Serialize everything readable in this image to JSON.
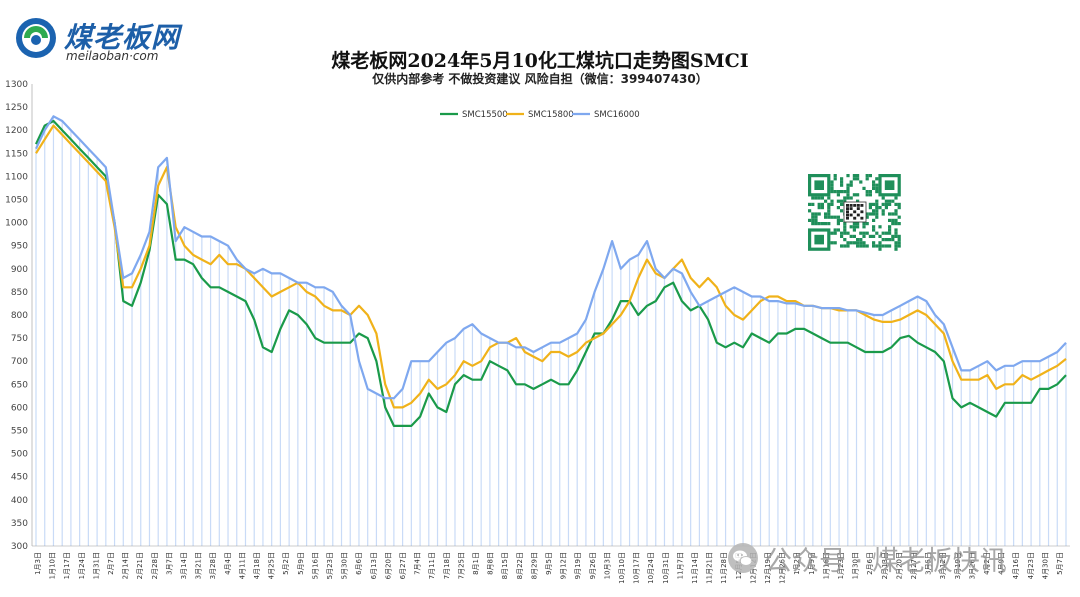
{
  "logo": {
    "name": "煤老板网",
    "sub": "meilaoban·com",
    "mark_icon": "coal-boss-logo-icon"
  },
  "header": {
    "title": "煤老板网2024年5月10化工煤坑口走势图SMCI",
    "subtitle": "仅供内部参考 不做投资建议 风险自担（微信：399407430）"
  },
  "qr": {
    "icon": "qr-code-icon"
  },
  "watermark": {
    "icon": "wechat-icon",
    "text": "公众号 · 煤老板快讯"
  },
  "chart_data": {
    "type": "line",
    "title": "煤老板网2024年5月10化工煤坑口走势图SMCI",
    "ylim": [
      300,
      1300
    ],
    "yticks": [
      300,
      350,
      400,
      450,
      500,
      550,
      600,
      650,
      700,
      750,
      800,
      850,
      900,
      950,
      1000,
      1050,
      1100,
      1150,
      1200,
      1250,
      1300
    ],
    "grid": false,
    "legend": "top-center",
    "xtick_labels": [
      "1月3日",
      "1月10日",
      "1月17日",
      "1月24日",
      "1月31日",
      "2月7日",
      "2月14日",
      "2月21日",
      "2月28日",
      "3月7日",
      "3月14日",
      "3月21日",
      "3月28日",
      "4月4日",
      "4月11日",
      "4月18日",
      "4月25日",
      "5月2日",
      "5月9日",
      "5月16日",
      "5月23日",
      "5月30日",
      "6月6日",
      "6月13日",
      "6月20日",
      "6月27日",
      "7月4日",
      "7月11日",
      "7月18日",
      "7月25日",
      "8月1日",
      "8月8日",
      "8月15日",
      "8月22日",
      "8月29日",
      "9月5日",
      "9月12日",
      "9月19日",
      "9月26日",
      "10月3日",
      "10月10日",
      "10月17日",
      "10月24日",
      "10月31日",
      "11月7日",
      "11月14日",
      "11月21日",
      "11月28日",
      "12月5日",
      "12月12日",
      "12月19日",
      "12月26日",
      "1月2日",
      "1月9日",
      "1月16日",
      "1月23日",
      "1月30日",
      "2月6日",
      "2月13日",
      "2月20日",
      "2月27日",
      "3月5日",
      "3月12日",
      "3月19日",
      "3月26日",
      "4月2日",
      "4月9日",
      "4月16日",
      "4月23日",
      "4月30日",
      "5月7日"
    ],
    "series": [
      {
        "name": "SMC15500",
        "color": "#1a9a4a",
        "values": [
          1170,
          1210,
          1220,
          1200,
          1180,
          1160,
          1140,
          1120,
          1100,
          1000,
          830,
          820,
          870,
          940,
          1060,
          1040,
          920,
          920,
          910,
          880,
          860,
          860,
          850,
          840,
          830,
          790,
          730,
          720,
          770,
          810,
          800,
          780,
          750,
          740,
          740,
          740,
          740,
          760,
          750,
          700,
          600,
          560,
          560,
          560,
          580,
          630,
          600,
          590,
          650,
          670,
          660,
          660,
          700,
          690,
          680,
          650,
          650,
          640,
          650,
          660,
          650,
          650,
          680,
          720,
          760,
          760,
          790,
          830,
          830,
          800,
          820,
          830,
          860,
          870,
          830,
          810,
          820,
          790,
          740,
          730,
          740,
          730,
          760,
          750,
          740,
          760,
          760,
          770,
          770,
          760,
          750,
          740,
          740,
          740,
          730,
          720,
          720,
          720,
          730,
          750,
          755,
          740,
          730,
          720,
          700,
          620,
          600,
          610,
          600,
          590,
          580,
          610,
          610,
          610,
          610,
          640,
          640,
          650,
          670
        ]
      },
      {
        "name": "SMC15800",
        "color": "#f0b21a",
        "values": [
          1150,
          1180,
          1210,
          1190,
          1170,
          1150,
          1130,
          1110,
          1090,
          990,
          860,
          860,
          900,
          950,
          1080,
          1120,
          990,
          950,
          930,
          920,
          910,
          930,
          910,
          910,
          900,
          880,
          860,
          840,
          850,
          860,
          870,
          850,
          840,
          820,
          810,
          810,
          800,
          820,
          800,
          760,
          650,
          600,
          600,
          610,
          630,
          660,
          640,
          650,
          670,
          700,
          690,
          700,
          730,
          740,
          740,
          750,
          720,
          710,
          700,
          720,
          720,
          710,
          720,
          740,
          750,
          760,
          780,
          800,
          830,
          880,
          920,
          890,
          880,
          900,
          920,
          880,
          860,
          880,
          860,
          820,
          800,
          790,
          810,
          830,
          840,
          840,
          830,
          830,
          820,
          820,
          815,
          815,
          810,
          810,
          810,
          800,
          790,
          785,
          785,
          790,
          800,
          810,
          800,
          780,
          760,
          700,
          660,
          660,
          660,
          670,
          640,
          650,
          650,
          670,
          660,
          670,
          680,
          690,
          705
        ]
      },
      {
        "name": "SMC16000",
        "color": "#7fa8ef",
        "values": [
          1160,
          1200,
          1230,
          1220,
          1200,
          1180,
          1160,
          1140,
          1120,
          1000,
          880,
          890,
          930,
          980,
          1120,
          1140,
          960,
          990,
          980,
          970,
          970,
          960,
          950,
          920,
          900,
          890,
          900,
          890,
          890,
          880,
          870,
          870,
          860,
          860,
          850,
          820,
          800,
          700,
          640,
          630,
          620,
          620,
          640,
          700,
          700,
          700,
          720,
          740,
          750,
          770,
          780,
          760,
          750,
          740,
          740,
          730,
          730,
          720,
          730,
          740,
          740,
          750,
          760,
          790,
          850,
          900,
          960,
          900,
          920,
          930,
          960,
          900,
          880,
          900,
          890,
          850,
          820,
          830,
          840,
          850,
          860,
          850,
          840,
          840,
          830,
          830,
          825,
          825,
          820,
          820,
          815,
          815,
          815,
          810,
          810,
          805,
          800,
          800,
          810,
          820,
          830,
          840,
          830,
          800,
          780,
          730,
          680,
          680,
          690,
          700,
          680,
          690,
          690,
          700,
          700,
          700,
          710,
          720,
          740
        ]
      }
    ]
  }
}
